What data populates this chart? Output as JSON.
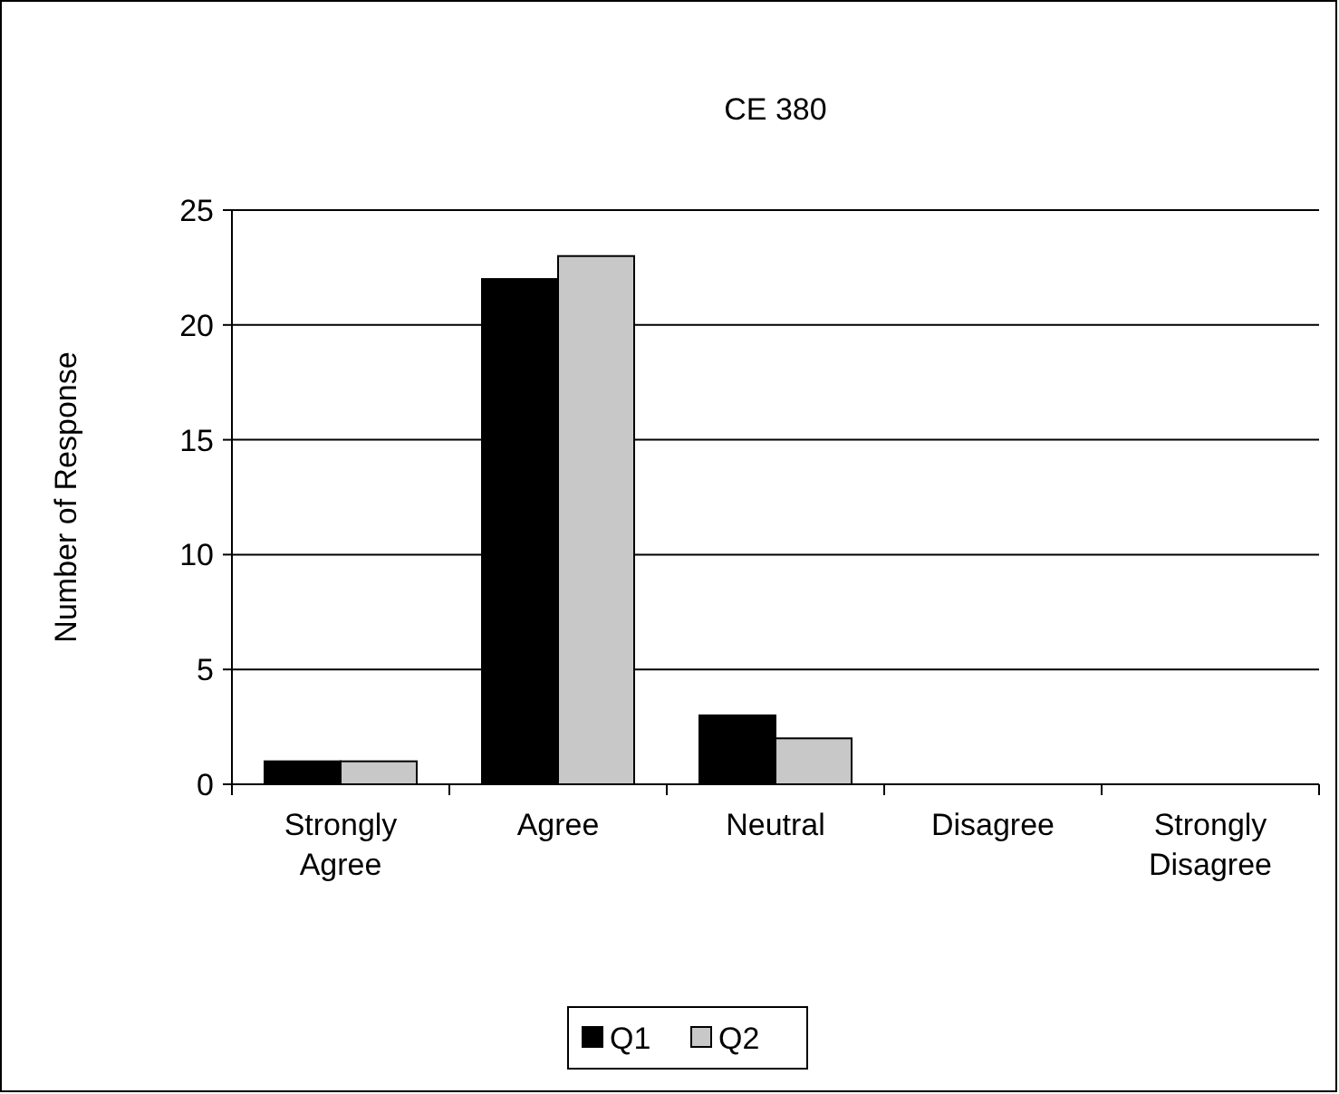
{
  "chart_data": {
    "type": "bar",
    "title": "CE 380",
    "ylabel": "Number of Response",
    "categories": [
      "Strongly\nAgree",
      "Agree",
      "Neutral",
      "Disagree",
      "Strongly\nDisagree"
    ],
    "series": [
      {
        "name": "Q1",
        "color": "#000000",
        "values": [
          1,
          22,
          3,
          0,
          0
        ]
      },
      {
        "name": "Q2",
        "color": "#c8c8c8",
        "values": [
          1,
          23,
          2,
          0,
          0
        ]
      }
    ],
    "ylim": [
      0,
      25
    ],
    "yticks": [
      0,
      5,
      10,
      15,
      20,
      25
    ],
    "grid": "y",
    "legend": "bottom"
  }
}
